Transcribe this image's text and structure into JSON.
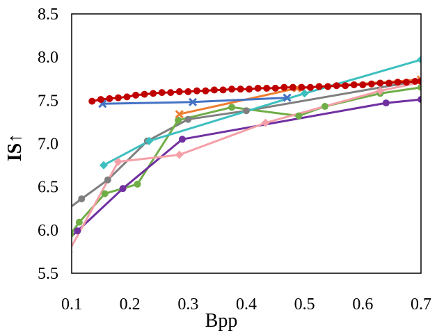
{
  "chart_data": {
    "type": "line",
    "title": "",
    "xlabel": "Bpp",
    "ylabel": "IS↑",
    "xlim": [
      0.1,
      0.7
    ],
    "ylim": [
      5.5,
      8.5
    ],
    "xticks": [
      "0.1",
      "0.2",
      "0.3",
      "0.4",
      "0.5",
      "0.6",
      "0.7"
    ],
    "yticks": [
      "5.5",
      "6.0",
      "6.5",
      "7.0",
      "7.5",
      "8.0",
      "8.5"
    ],
    "xtick_values": [
      0.1,
      0.2,
      0.3,
      0.4,
      0.5,
      0.6,
      0.7
    ],
    "ytick_values": [
      5.5,
      6.0,
      6.5,
      7.0,
      7.5,
      8.0,
      8.5
    ],
    "grid": false,
    "legend": "none",
    "series": [
      {
        "name": "gray",
        "color": "#7f7f7f",
        "marker": "circle",
        "x": [
          0.095,
          0.117,
          0.162,
          0.23,
          0.3,
          0.4,
          0.7
        ],
        "y": [
          6.25,
          6.36,
          6.58,
          7.03,
          7.28,
          7.38,
          7.73
        ]
      },
      {
        "name": "green",
        "color": "#70ad47",
        "marker": "circle",
        "x": [
          0.098,
          0.113,
          0.157,
          0.213,
          0.283,
          0.375,
          0.49,
          0.535,
          0.63,
          0.7
        ],
        "y": [
          5.95,
          6.09,
          6.42,
          6.53,
          7.27,
          7.42,
          7.32,
          7.43,
          7.58,
          7.65
        ]
      },
      {
        "name": "purple",
        "color": "#7030a0",
        "marker": "circle",
        "x": [
          0.095,
          0.11,
          0.188,
          0.29,
          0.64,
          0.7
        ],
        "y": [
          5.9,
          5.99,
          6.48,
          7.05,
          7.47,
          7.51
        ]
      },
      {
        "name": "pink",
        "color": "#f4a0a8",
        "marker": "diamond",
        "x": [
          0.095,
          0.18,
          0.285,
          0.433,
          0.63,
          0.7
        ],
        "y": [
          5.75,
          6.79,
          6.87,
          7.24,
          7.61,
          7.71
        ]
      },
      {
        "name": "teal",
        "color": "#3dbfbf",
        "marker": "diamond",
        "x": [
          0.155,
          0.233,
          0.5,
          0.7
        ],
        "y": [
          6.75,
          7.03,
          7.58,
          7.97
        ]
      },
      {
        "name": "orange",
        "color": "#ed7d31",
        "marker": "x",
        "x": [
          0.285,
          0.487,
          0.7
        ],
        "y": [
          7.34,
          7.64,
          7.74
        ]
      },
      {
        "name": "blue",
        "color": "#4472c4",
        "marker": "x",
        "x": [
          0.153,
          0.308,
          0.47
        ],
        "y": [
          7.46,
          7.48,
          7.53
        ]
      },
      {
        "name": "red",
        "color": "#c00000",
        "marker": "circle",
        "x": [
          0.135,
          0.15,
          0.165,
          0.18,
          0.195,
          0.21,
          0.225,
          0.24,
          0.255,
          0.27,
          0.285,
          0.3,
          0.315,
          0.33,
          0.345,
          0.36,
          0.375,
          0.39,
          0.405,
          0.42,
          0.435,
          0.45,
          0.465,
          0.48,
          0.495,
          0.51,
          0.525,
          0.54,
          0.555,
          0.57,
          0.585,
          0.6,
          0.615,
          0.63,
          0.645,
          0.66,
          0.675,
          0.69,
          0.7
        ],
        "y": [
          7.49,
          7.51,
          7.52,
          7.53,
          7.54,
          7.56,
          7.57,
          7.58,
          7.59,
          7.59,
          7.6,
          7.6,
          7.61,
          7.61,
          7.62,
          7.62,
          7.63,
          7.63,
          7.63,
          7.64,
          7.64,
          7.64,
          7.65,
          7.65,
          7.65,
          7.65,
          7.66,
          7.66,
          7.67,
          7.67,
          7.68,
          7.68,
          7.69,
          7.7,
          7.7,
          7.71,
          7.71,
          7.72,
          7.72
        ]
      }
    ]
  }
}
